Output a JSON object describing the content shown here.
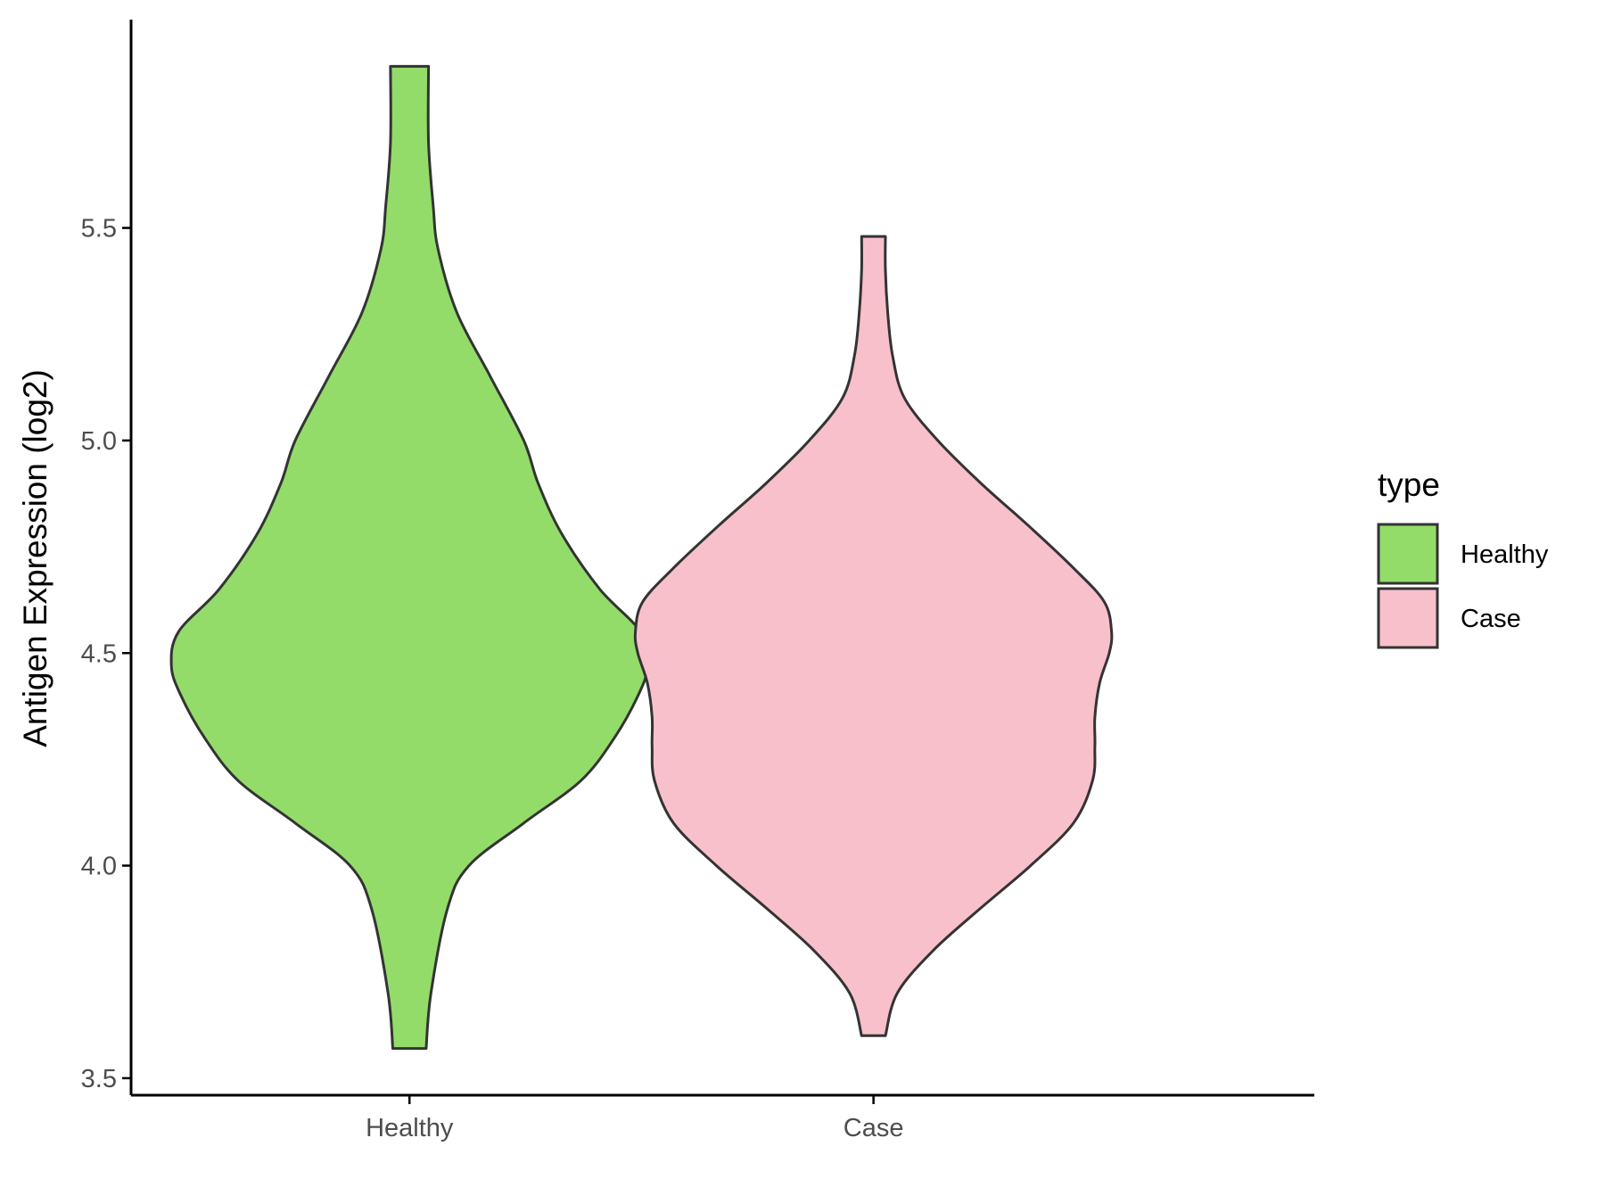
{
  "chart_data": {
    "type": "violin",
    "ylabel": "Antigen Expression (log2)",
    "xlabel": "",
    "ylim": [
      3.46,
      5.99
    ],
    "yticks": [
      "3.5",
      "4.0",
      "4.5",
      "5.0",
      "5.5"
    ],
    "categories": [
      "Healthy",
      "Case"
    ],
    "legend": {
      "title": "type",
      "position": "right"
    },
    "grid": false,
    "series": [
      {
        "name": "Healthy",
        "color": "#93DC6A",
        "min": 3.57,
        "max": 5.88,
        "density_profile": [
          [
            3.57,
            0.07
          ],
          [
            3.7,
            0.09
          ],
          [
            3.9,
            0.16
          ],
          [
            4.0,
            0.25
          ],
          [
            4.1,
            0.48
          ],
          [
            4.2,
            0.72
          ],
          [
            4.3,
            0.86
          ],
          [
            4.4,
            0.96
          ],
          [
            4.47,
            1.0
          ],
          [
            4.55,
            0.97
          ],
          [
            4.65,
            0.8
          ],
          [
            4.78,
            0.64
          ],
          [
            4.9,
            0.54
          ],
          [
            5.0,
            0.48
          ],
          [
            5.15,
            0.34
          ],
          [
            5.3,
            0.2
          ],
          [
            5.45,
            0.12
          ],
          [
            5.55,
            0.1
          ],
          [
            5.7,
            0.08
          ],
          [
            5.88,
            0.08
          ]
        ]
      },
      {
        "name": "Case",
        "color": "#F8C0CB",
        "min": 3.6,
        "max": 5.48,
        "density_profile": [
          [
            3.6,
            0.05
          ],
          [
            3.7,
            0.1
          ],
          [
            3.8,
            0.25
          ],
          [
            3.9,
            0.45
          ],
          [
            4.0,
            0.66
          ],
          [
            4.1,
            0.84
          ],
          [
            4.2,
            0.92
          ],
          [
            4.28,
            0.93
          ],
          [
            4.35,
            0.93
          ],
          [
            4.43,
            0.95
          ],
          [
            4.5,
            0.99
          ],
          [
            4.55,
            1.0
          ],
          [
            4.62,
            0.97
          ],
          [
            4.7,
            0.84
          ],
          [
            4.8,
            0.65
          ],
          [
            4.9,
            0.45
          ],
          [
            5.0,
            0.27
          ],
          [
            5.1,
            0.13
          ],
          [
            5.2,
            0.08
          ],
          [
            5.3,
            0.06
          ],
          [
            5.4,
            0.05
          ],
          [
            5.48,
            0.05
          ]
        ]
      }
    ]
  }
}
